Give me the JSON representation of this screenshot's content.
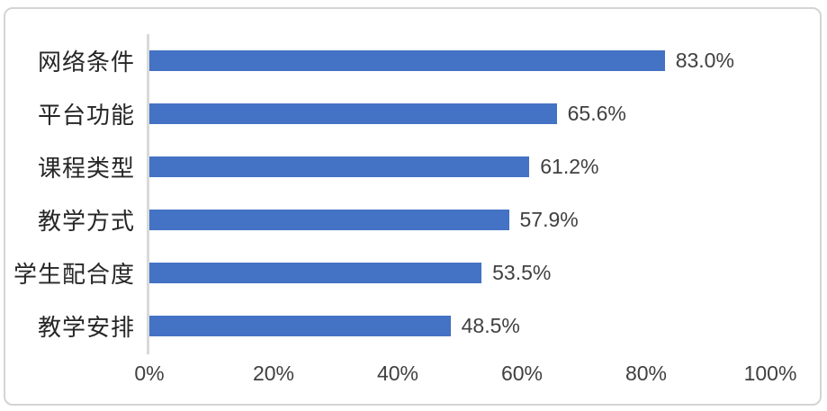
{
  "chart_data": {
    "type": "bar",
    "orientation": "horizontal",
    "title": "",
    "categories": [
      "网络条件",
      "平台功能",
      "课程类型",
      "教学方式",
      "学生配合度",
      "教学安排"
    ],
    "values": [
      83.0,
      65.6,
      61.2,
      57.9,
      53.5,
      48.5
    ],
    "value_labels": [
      "83.0%",
      "65.6%",
      "61.2%",
      "57.9%",
      "53.5%",
      "48.5%"
    ],
    "x_ticks": [
      {
        "value": 0,
        "label": "0%"
      },
      {
        "value": 20,
        "label": "20%"
      },
      {
        "value": 40,
        "label": "40%"
      },
      {
        "value": 60,
        "label": "60%"
      },
      {
        "value": 80,
        "label": "80%"
      },
      {
        "value": 100,
        "label": "100%"
      }
    ],
    "xlim": [
      0,
      100
    ],
    "grid": false,
    "legend": "none",
    "colors": {
      "bar": "#4472C4",
      "axis_line": "#D9D9D9",
      "tick_text": "#404040",
      "data_label_text": "#404040",
      "category_text": "#262626",
      "frame_border": "#D4D4D4",
      "background": "#FFFFFF"
    }
  }
}
